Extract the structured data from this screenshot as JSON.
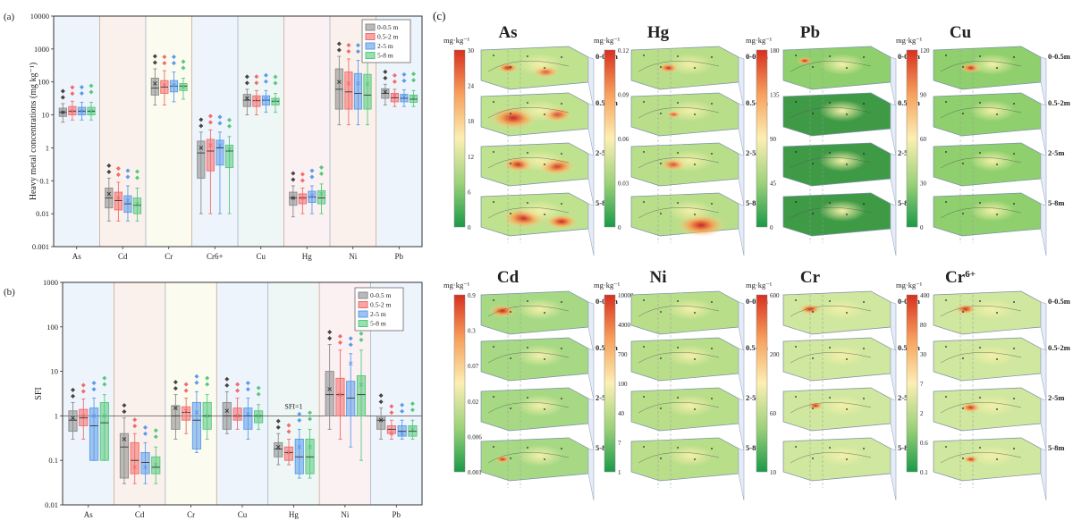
{
  "chart_data": [
    {
      "id": "a",
      "panel_label": "(a)",
      "type": "box",
      "ylabel": "Heavy metal concentrations (mg kg⁻¹)",
      "yscale": "log",
      "ylim": [
        0.001,
        10000
      ],
      "yticks": [
        "0.001",
        "0.01",
        "0.1",
        "1",
        "10",
        "100",
        "1000",
        "10000"
      ],
      "categories": [
        "As",
        "Cd",
        "Cr",
        "Cr6+",
        "Cu",
        "Hg",
        "Ni",
        "Pb"
      ],
      "legend": [
        "0-0.5 m",
        "0.5-2 m",
        "2-5 m",
        "5-8 m"
      ],
      "series_colors": [
        "#8a8a8a",
        "#f26b6b",
        "#5b9bea",
        "#55c97c"
      ],
      "band_colors": [
        "#eef4fb",
        "#fbf1ec",
        "#fbfbef",
        "#eef4fb",
        "#eef7f5",
        "#fbf0f2",
        "#fbf1ec",
        "#eef4fb"
      ],
      "boxes": [
        [
          [
            6,
            9,
            12,
            16,
            22,
            12
          ],
          [
            7,
            10,
            13,
            18,
            26,
            13
          ],
          [
            7,
            10,
            13,
            17,
            24,
            13
          ],
          [
            7,
            10,
            13,
            17,
            24,
            13
          ]
        ],
        [
          [
            0.006,
            0.015,
            0.03,
            0.06,
            0.12,
            0.04
          ],
          [
            0.006,
            0.013,
            0.025,
            0.045,
            0.09,
            0.03
          ],
          [
            0.006,
            0.011,
            0.02,
            0.035,
            0.07,
            0.025
          ],
          [
            0.006,
            0.01,
            0.018,
            0.03,
            0.06,
            0.02
          ]
        ],
        [
          [
            20,
            40,
            65,
            130,
            250,
            90
          ],
          [
            20,
            45,
            70,
            110,
            220,
            80
          ],
          [
            25,
            50,
            75,
            110,
            200,
            80
          ],
          [
            30,
            55,
            75,
            90,
            130,
            72
          ]
        ],
        [
          [
            0.01,
            0.12,
            0.7,
            1.6,
            3,
            1
          ],
          [
            0.01,
            0.2,
            0.8,
            1.8,
            3.5,
            1.2
          ],
          [
            0.01,
            0.3,
            1,
            1.7,
            3,
            1.2
          ],
          [
            0.01,
            0.25,
            0.8,
            1.2,
            2.2,
            0.9
          ]
        ],
        [
          [
            10,
            18,
            28,
            42,
            60,
            32
          ],
          [
            10,
            18,
            27,
            38,
            55,
            30
          ],
          [
            12,
            20,
            28,
            38,
            55,
            30
          ],
          [
            12,
            20,
            26,
            32,
            45,
            28
          ]
        ],
        [
          [
            0.008,
            0.018,
            0.03,
            0.045,
            0.07,
            0.03
          ],
          [
            0.01,
            0.02,
            0.03,
            0.04,
            0.06,
            0.03
          ],
          [
            0.01,
            0.022,
            0.032,
            0.048,
            0.07,
            0.035
          ],
          [
            0.01,
            0.02,
            0.03,
            0.05,
            0.08,
            0.04
          ]
        ],
        [
          [
            5,
            15,
            60,
            250,
            600,
            100
          ],
          [
            5,
            15,
            50,
            200,
            500,
            90
          ],
          [
            5,
            15,
            45,
            180,
            450,
            90
          ],
          [
            5,
            15,
            40,
            170,
            400,
            85
          ]
        ],
        [
          [
            20,
            32,
            45,
            62,
            85,
            50
          ],
          [
            18,
            25,
            33,
            45,
            60,
            38
          ],
          [
            18,
            25,
            32,
            42,
            58,
            36
          ],
          [
            18,
            24,
            30,
            40,
            55,
            34
          ]
        ]
      ]
    },
    {
      "id": "b",
      "panel_label": "(b)",
      "type": "box",
      "ylabel": "SFI",
      "yscale": "log",
      "ylim": [
        0.01,
        1000
      ],
      "yticks": [
        "0.01",
        "0.1",
        "1",
        "10",
        "100",
        "1000"
      ],
      "categories": [
        "As",
        "Cd",
        "Cr",
        "Cu",
        "Hg",
        "Ni",
        "Pb"
      ],
      "legend": [
        "0-0.5 m",
        "0.5-2 m",
        "2-5 m",
        "5-8 m"
      ],
      "series_colors": [
        "#8a8a8a",
        "#f26b6b",
        "#5b9bea",
        "#55c97c"
      ],
      "band_colors": [
        "#eef4fb",
        "#fbf1ec",
        "#fbfbef",
        "#eef4fb",
        "#eef7f5",
        "#fbf0f2",
        "#eef4fb"
      ],
      "reference_line": {
        "value": 1,
        "label": "SFI=1"
      },
      "boxes": [
        [
          [
            0.3,
            0.45,
            0.8,
            1.3,
            2,
            0.9
          ],
          [
            0.3,
            0.6,
            0.9,
            1.4,
            2.4,
            1
          ],
          [
            0.1,
            0.1,
            0.6,
            1.5,
            2.5,
            1
          ],
          [
            0.1,
            0.1,
            0.7,
            2,
            3,
            1
          ]
        ],
        [
          [
            0.03,
            0.04,
            0.2,
            0.4,
            0.9,
            0.3
          ],
          [
            0.03,
            0.05,
            0.1,
            0.25,
            0.4,
            0.07
          ],
          [
            0.03,
            0.05,
            0.09,
            0.15,
            0.25,
            0.07
          ],
          [
            0.03,
            0.05,
            0.07,
            0.12,
            0.2,
            0.08
          ]
        ],
        [
          [
            0.3,
            0.5,
            1,
            1.7,
            3,
            1.5
          ],
          [
            0.4,
            0.8,
            1.2,
            1.6,
            2.5,
            1.3
          ],
          [
            0.15,
            0.18,
            0.8,
            2,
            3.5,
            1.2
          ],
          [
            0.3,
            0.5,
            1,
            2,
            3,
            1
          ]
        ],
        [
          [
            0.4,
            0.5,
            1,
            2,
            3.5,
            1.3
          ],
          [
            0.5,
            0.8,
            1,
            1.5,
            2.5,
            1
          ],
          [
            0.3,
            0.5,
            1,
            1.5,
            2.5,
            1.1
          ],
          [
            0.5,
            0.7,
            1,
            1.3,
            1.8,
            1
          ]
        ],
        [
          [
            0.08,
            0.12,
            0.18,
            0.25,
            0.4,
            0.2
          ],
          [
            0.08,
            0.1,
            0.15,
            0.2,
            0.3,
            0.15
          ],
          [
            0.04,
            0.05,
            0.12,
            0.3,
            0.5,
            0.2
          ],
          [
            0.04,
            0.05,
            0.12,
            0.3,
            0.5,
            0.2
          ]
        ],
        [
          [
            0.5,
            1,
            3,
            10,
            40,
            4
          ],
          [
            0.3,
            1,
            3,
            7,
            30,
            3
          ],
          [
            0.2,
            1,
            2.5,
            6,
            25,
            15
          ],
          [
            0.1,
            1,
            3,
            8,
            30,
            5
          ]
        ],
        [
          [
            0.3,
            0.5,
            0.8,
            1,
            1.5,
            0.8
          ],
          [
            0.3,
            0.4,
            0.5,
            0.6,
            0.8,
            0.4
          ],
          [
            0.3,
            0.35,
            0.45,
            0.6,
            0.8,
            0.4
          ],
          [
            0.3,
            0.35,
            0.45,
            0.6,
            0.8,
            0.5
          ]
        ]
      ]
    }
  ],
  "panel_c": {
    "label": "(c)",
    "maps": [
      {
        "element": "As",
        "sup": "",
        "unit": "mg·kg⁻¹",
        "scale": [
          "30",
          "24",
          "18",
          "12",
          "6",
          "0"
        ],
        "depths": [
          "0-0.5m",
          "0.5-2m",
          "2-5m",
          "5-8m"
        ]
      },
      {
        "element": "Hg",
        "sup": "",
        "unit": "mg·kg⁻¹",
        "scale": [
          "0.12",
          "0.09",
          "0.06",
          "0.03",
          "0"
        ],
        "depths": [
          "0-0.5m",
          "0.5-2m",
          "2-5m",
          "5-8m"
        ]
      },
      {
        "element": "Pb",
        "sup": "",
        "unit": "mg·kg⁻¹",
        "scale": [
          "180",
          "135",
          "90",
          "45",
          "0"
        ],
        "depths": [
          "0-0.5m",
          "0.5-2m",
          "2-5m",
          "5-8m"
        ]
      },
      {
        "element": "Cu",
        "sup": "",
        "unit": "mg·kg⁻¹",
        "scale": [
          "120",
          "90",
          "60",
          "30",
          "0"
        ],
        "depths": [
          "0-0.5m",
          "0.5-2m",
          "2-5m",
          "5-8m"
        ]
      },
      {
        "element": "Cd",
        "sup": "",
        "unit": "mg·kg⁻¹",
        "scale": [
          "0.9",
          "0.3",
          "0.07",
          "0.02",
          "0.006",
          "0.001"
        ],
        "depths": [
          "0-0.5m",
          "0.5-2m",
          "2-5m",
          "5-8m"
        ]
      },
      {
        "element": "Ni",
        "sup": "",
        "unit": "mg·kg⁻¹",
        "scale": [
          "10000",
          "4000",
          "700",
          "100",
          "40",
          "7",
          "1"
        ],
        "depths": [
          "0-0.5m",
          "0.5-2m",
          "2-5m",
          "5-8m"
        ]
      },
      {
        "element": "Cr",
        "sup": "",
        "unit": "mg·kg⁻¹",
        "scale": [
          "600",
          "200",
          "60",
          "10"
        ],
        "depths": [
          "0-0.5m",
          "0.5-2m",
          "2-5m",
          "5-8m"
        ]
      },
      {
        "element": "Cr",
        "sup": "6+",
        "unit": "mg·kg⁻¹",
        "scale": [
          "400",
          "80",
          "30",
          "7",
          "2",
          "0.6",
          "0.1"
        ],
        "depths": [
          "0-0.5m",
          "0.5-2m",
          "2-5m",
          "5-8m"
        ]
      }
    ]
  }
}
